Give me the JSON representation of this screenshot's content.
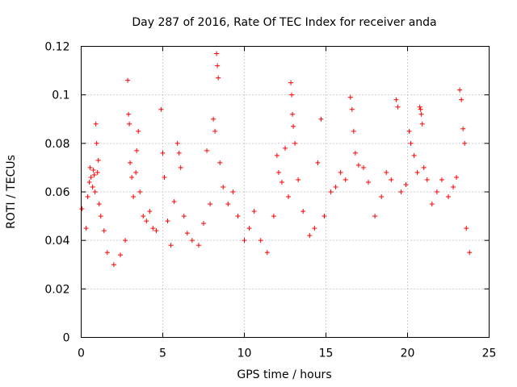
{
  "chart_data": {
    "type": "scatter",
    "title": "Day 287 of 2016, Rate Of TEC Index for receiver anda",
    "xlabel": "GPS time / hours",
    "ylabel": "ROTI / TECUs",
    "xlim": [
      0,
      25
    ],
    "ylim": [
      0,
      0.12
    ],
    "xticks": [
      0,
      5,
      10,
      15,
      20,
      25
    ],
    "xtick_labels": [
      "0",
      "5",
      "10",
      "15",
      "20",
      "25"
    ],
    "yticks": [
      0,
      0.02,
      0.04,
      0.06,
      0.08,
      0.1,
      0.12
    ],
    "ytick_labels": [
      "0",
      "0.02",
      "0.04",
      "0.06",
      "0.08",
      "0.1",
      "0.12"
    ],
    "grid": true,
    "marker": "+",
    "color": "#ff0000",
    "series": [
      {
        "name": "ROTI",
        "points": [
          [
            0.05,
            0.053
          ],
          [
            0.3,
            0.045
          ],
          [
            0.4,
            0.058
          ],
          [
            0.5,
            0.064
          ],
          [
            0.55,
            0.07
          ],
          [
            0.6,
            0.066
          ],
          [
            0.7,
            0.062
          ],
          [
            0.75,
            0.069
          ],
          [
            0.8,
            0.067
          ],
          [
            0.85,
            0.06
          ],
          [
            0.9,
            0.088
          ],
          [
            0.95,
            0.08
          ],
          [
            1.0,
            0.068
          ],
          [
            1.05,
            0.073
          ],
          [
            1.1,
            0.055
          ],
          [
            1.2,
            0.05
          ],
          [
            1.4,
            0.044
          ],
          [
            1.6,
            0.035
          ],
          [
            2.0,
            0.03
          ],
          [
            2.4,
            0.034
          ],
          [
            2.7,
            0.04
          ],
          [
            2.85,
            0.106
          ],
          [
            2.9,
            0.092
          ],
          [
            2.95,
            0.088
          ],
          [
            3.0,
            0.072
          ],
          [
            3.1,
            0.066
          ],
          [
            3.2,
            0.058
          ],
          [
            3.35,
            0.068
          ],
          [
            3.4,
            0.077
          ],
          [
            3.5,
            0.085
          ],
          [
            3.6,
            0.06
          ],
          [
            3.8,
            0.05
          ],
          [
            4.0,
            0.048
          ],
          [
            4.2,
            0.052
          ],
          [
            4.4,
            0.045
          ],
          [
            4.6,
            0.044
          ],
          [
            4.9,
            0.094
          ],
          [
            5.0,
            0.076
          ],
          [
            5.1,
            0.066
          ],
          [
            5.3,
            0.048
          ],
          [
            5.5,
            0.038
          ],
          [
            5.7,
            0.056
          ],
          [
            5.9,
            0.08
          ],
          [
            6.0,
            0.076
          ],
          [
            6.1,
            0.07
          ],
          [
            6.3,
            0.05
          ],
          [
            6.5,
            0.043
          ],
          [
            6.8,
            0.04
          ],
          [
            7.2,
            0.038
          ],
          [
            7.5,
            0.047
          ],
          [
            7.7,
            0.077
          ],
          [
            7.9,
            0.055
          ],
          [
            8.1,
            0.09
          ],
          [
            8.2,
            0.085
          ],
          [
            8.3,
            0.117
          ],
          [
            8.35,
            0.112
          ],
          [
            8.4,
            0.107
          ],
          [
            8.5,
            0.072
          ],
          [
            8.7,
            0.062
          ],
          [
            9.0,
            0.055
          ],
          [
            9.3,
            0.06
          ],
          [
            9.6,
            0.05
          ],
          [
            10.0,
            0.04
          ],
          [
            10.3,
            0.045
          ],
          [
            10.6,
            0.052
          ],
          [
            11.0,
            0.04
          ],
          [
            11.4,
            0.035
          ],
          [
            11.8,
            0.05
          ],
          [
            12.0,
            0.075
          ],
          [
            12.1,
            0.068
          ],
          [
            12.3,
            0.064
          ],
          [
            12.5,
            0.078
          ],
          [
            12.7,
            0.058
          ],
          [
            12.85,
            0.105
          ],
          [
            12.9,
            0.1
          ],
          [
            12.95,
            0.092
          ],
          [
            13.0,
            0.087
          ],
          [
            13.1,
            0.08
          ],
          [
            13.3,
            0.065
          ],
          [
            13.6,
            0.052
          ],
          [
            14.0,
            0.042
          ],
          [
            14.3,
            0.045
          ],
          [
            14.5,
            0.072
          ],
          [
            14.7,
            0.09
          ],
          [
            14.9,
            0.05
          ],
          [
            15.3,
            0.06
          ],
          [
            15.6,
            0.062
          ],
          [
            15.9,
            0.068
          ],
          [
            16.2,
            0.065
          ],
          [
            16.5,
            0.099
          ],
          [
            16.6,
            0.094
          ],
          [
            16.7,
            0.085
          ],
          [
            16.8,
            0.076
          ],
          [
            17.0,
            0.071
          ],
          [
            17.3,
            0.07
          ],
          [
            17.6,
            0.064
          ],
          [
            18.0,
            0.05
          ],
          [
            18.4,
            0.058
          ],
          [
            18.7,
            0.068
          ],
          [
            19.0,
            0.065
          ],
          [
            19.3,
            0.098
          ],
          [
            19.4,
            0.095
          ],
          [
            19.6,
            0.06
          ],
          [
            19.9,
            0.063
          ],
          [
            20.1,
            0.085
          ],
          [
            20.2,
            0.08
          ],
          [
            20.4,
            0.075
          ],
          [
            20.6,
            0.068
          ],
          [
            20.75,
            0.095
          ],
          [
            20.8,
            0.094
          ],
          [
            20.85,
            0.092
          ],
          [
            20.9,
            0.088
          ],
          [
            21.0,
            0.07
          ],
          [
            21.2,
            0.065
          ],
          [
            21.5,
            0.055
          ],
          [
            21.8,
            0.06
          ],
          [
            22.1,
            0.065
          ],
          [
            22.5,
            0.058
          ],
          [
            22.8,
            0.062
          ],
          [
            23.0,
            0.066
          ],
          [
            23.2,
            0.102
          ],
          [
            23.3,
            0.098
          ],
          [
            23.4,
            0.086
          ],
          [
            23.5,
            0.08
          ],
          [
            23.6,
            0.045
          ],
          [
            23.8,
            0.035
          ]
        ]
      }
    ]
  }
}
